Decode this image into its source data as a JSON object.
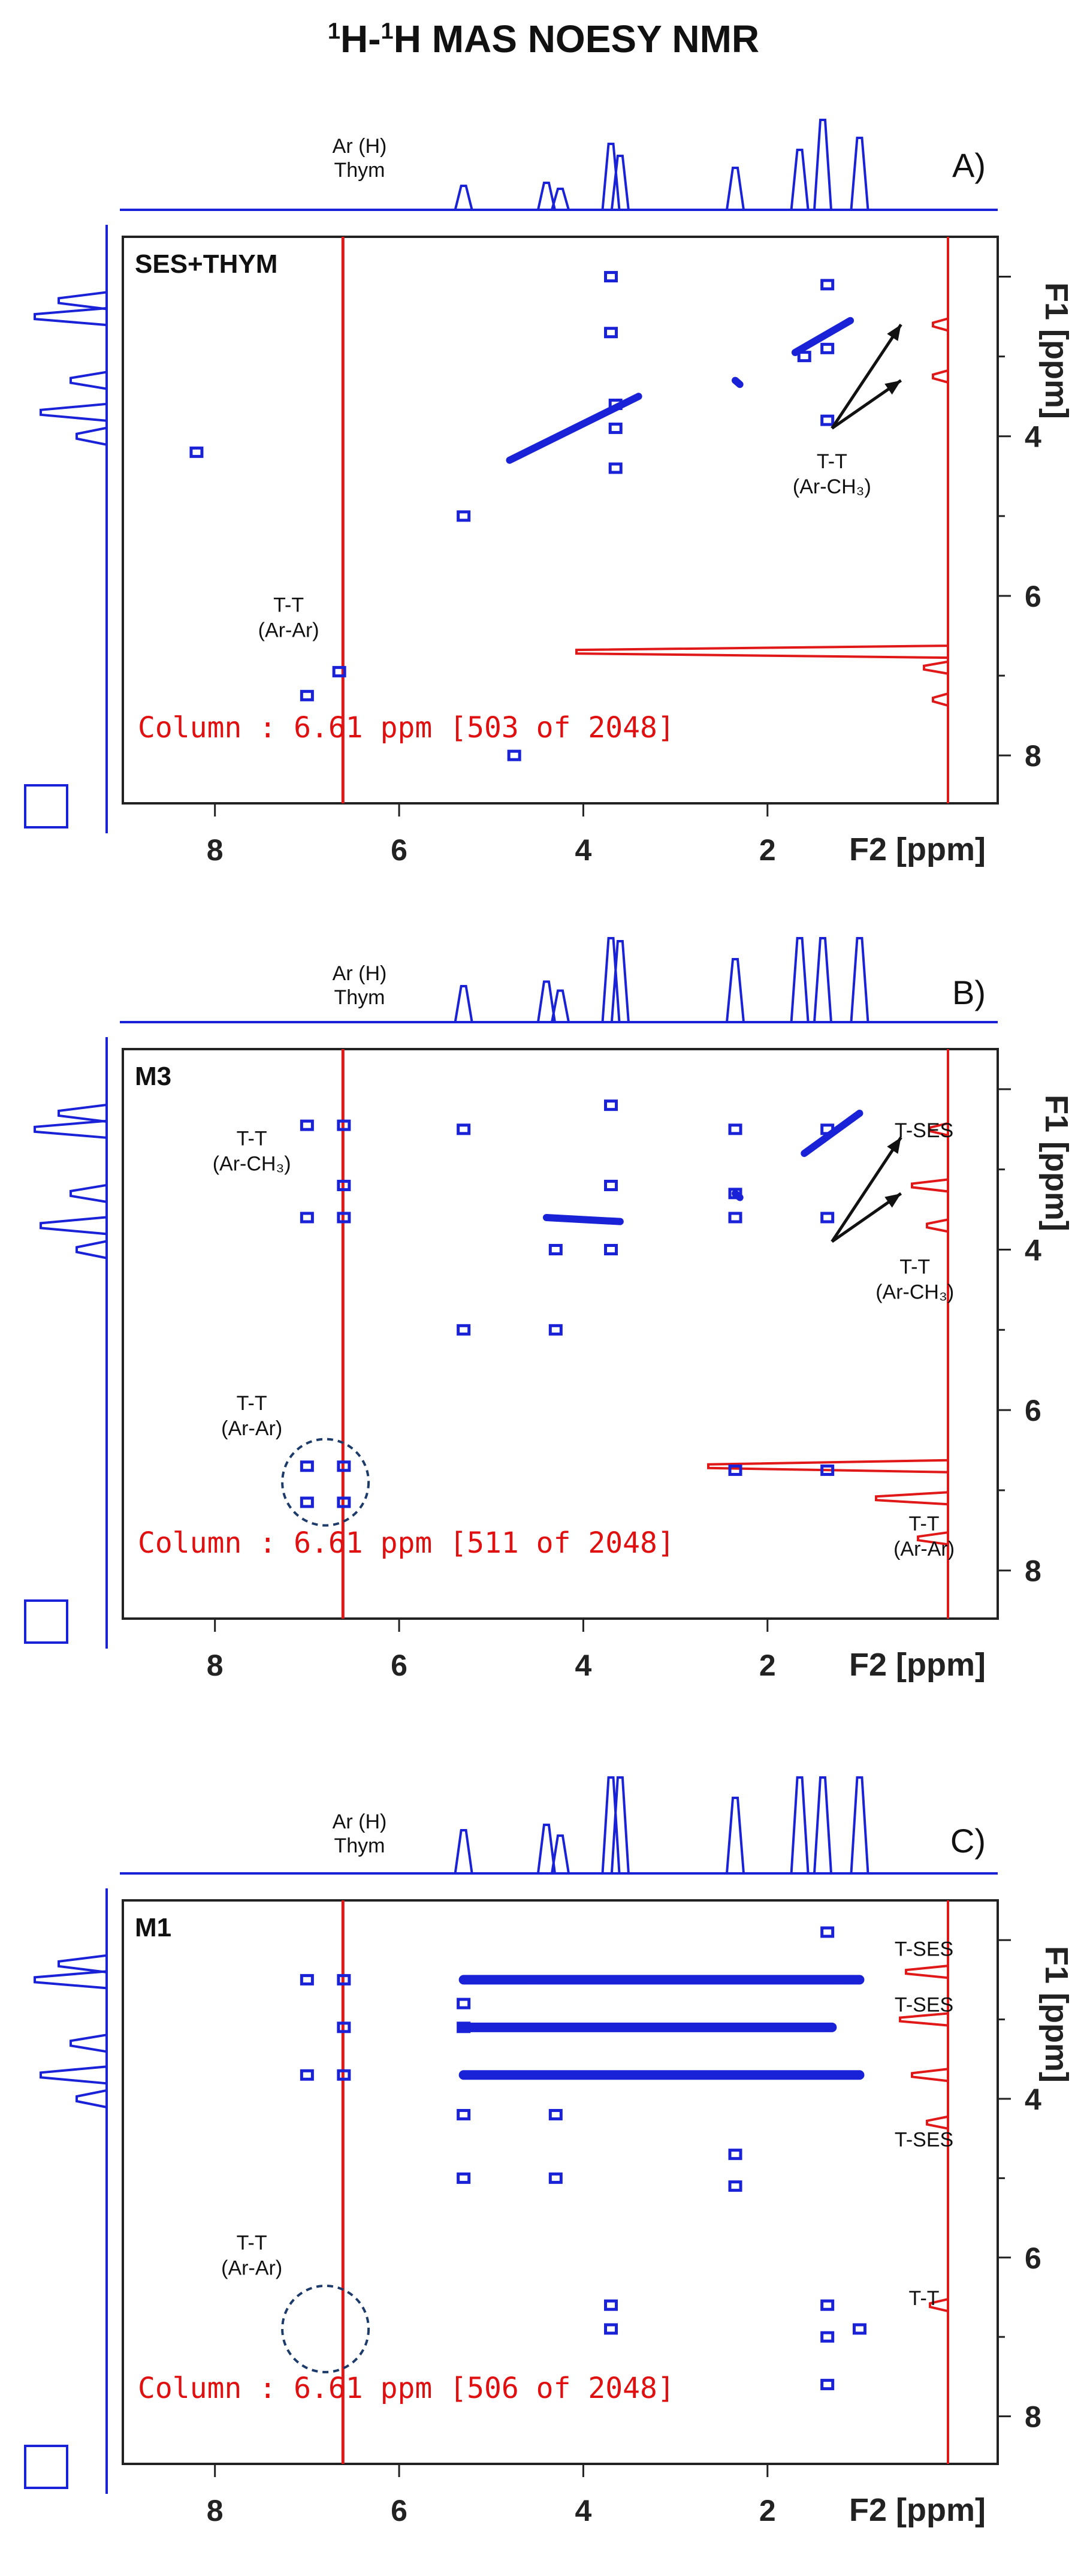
{
  "title": {
    "h1": "1",
    "dash": "H-",
    "h2": "1",
    "rest": "H MAS NOESY NMR"
  },
  "chart_data": [
    {
      "type": "scatter",
      "panel": "A)",
      "sample": "SES+THYM",
      "xlabel": "F2 [ppm]",
      "ylabel": "F1 [ppm]",
      "x_ticks": [
        "8",
        "6",
        "4",
        "2"
      ],
      "y_ticks": [
        "4",
        "6",
        "8"
      ],
      "xlim": [
        9,
        -0.5
      ],
      "ylim": [
        1.5,
        8.6
      ],
      "column_readout": "Column :  6.61 ppm [503 of 2048]",
      "column_ppm": 6.61,
      "thymol_label": {
        "line1": "Ar (H)",
        "line2": "Thym"
      },
      "annotations": [
        {
          "id": "tt-ar-ar",
          "line1": "T-T",
          "line2": "(Ar-Ar)",
          "x": 7.2,
          "y": 6.2
        },
        {
          "id": "tt-ar-ch3",
          "line1": "T-T",
          "line2": "(Ar-CH₃)",
          "x": 1.3,
          "y": 4.4
        }
      ],
      "peaks": [
        [
          3.7,
          2.0
        ],
        [
          3.7,
          2.7
        ],
        [
          1.35,
          2.1
        ],
        [
          1.35,
          3.8
        ],
        [
          3.65,
          3.6
        ],
        [
          3.65,
          3.9
        ],
        [
          3.65,
          4.4
        ],
        [
          8.2,
          4.2
        ],
        [
          5.3,
          5.0
        ],
        [
          7.0,
          7.25
        ],
        [
          6.65,
          6.95
        ],
        [
          4.75,
          8.0
        ],
        [
          1.6,
          3.0
        ],
        [
          1.35,
          2.9
        ]
      ],
      "diagonal_segments": [
        [
          4.8,
          4.3,
          3.4,
          3.5
        ],
        [
          2.35,
          3.3,
          2.3,
          3.35
        ],
        [
          1.7,
          2.95,
          1.1,
          2.55
        ]
      ],
      "side_arrows_targets": [
        2.6,
        3.3
      ]
    },
    {
      "type": "scatter",
      "panel": "B)",
      "sample": "M3",
      "xlabel": "F2 [ppm]",
      "ylabel": "F1 [ppm]",
      "x_ticks": [
        "8",
        "6",
        "4",
        "2"
      ],
      "y_ticks": [
        "4",
        "6",
        "8"
      ],
      "xlim": [
        9,
        -0.5
      ],
      "ylim": [
        1.5,
        8.6
      ],
      "column_readout": "Column :  6.61 ppm [511 of 2048]",
      "column_ppm": 6.61,
      "thymol_label": {
        "line1": "Ar (H)",
        "line2": "Thym"
      },
      "annotations": [
        {
          "id": "tt-ar-ch3-left",
          "line1": "T-T",
          "line2": "(Ar-CH₃)",
          "x": 7.6,
          "y": 2.7
        },
        {
          "id": "tt-ar-ar-left",
          "line1": "T-T",
          "line2": "(Ar-Ar)",
          "x": 7.6,
          "y": 6.0
        },
        {
          "id": "t-ses",
          "line1": "T-SES",
          "line2": "",
          "x": 0.3,
          "y": 2.6
        },
        {
          "id": "tt-ar-ch3-right",
          "line1": "T-T",
          "line2": "(Ar-CH₃)",
          "x": 0.4,
          "y": 4.3
        },
        {
          "id": "tt-ar-ar-right",
          "line1": "T-T",
          "line2": "(Ar-Ar)",
          "x": 0.3,
          "y": 7.5
        }
      ],
      "peaks": [
        [
          7.0,
          2.45
        ],
        [
          6.6,
          2.45
        ],
        [
          6.6,
          3.2
        ],
        [
          7.0,
          3.6
        ],
        [
          6.6,
          3.6
        ],
        [
          5.3,
          2.5
        ],
        [
          3.7,
          2.2
        ],
        [
          3.7,
          3.2
        ],
        [
          3.7,
          4.0
        ],
        [
          2.35,
          2.5
        ],
        [
          2.35,
          3.3
        ],
        [
          1.35,
          3.6
        ],
        [
          1.35,
          2.5
        ],
        [
          2.35,
          3.6
        ],
        [
          4.3,
          4.0
        ],
        [
          5.3,
          5.0
        ],
        [
          4.3,
          5.0
        ],
        [
          7.0,
          6.7
        ],
        [
          7.0,
          7.15
        ],
        [
          6.6,
          6.7
        ],
        [
          6.6,
          7.15
        ],
        [
          2.35,
          6.75
        ],
        [
          1.35,
          6.75
        ]
      ],
      "diagonal_segments": [
        [
          4.4,
          3.6,
          3.6,
          3.65
        ],
        [
          2.35,
          3.3,
          2.3,
          3.35
        ],
        [
          1.6,
          2.8,
          1.0,
          2.3
        ]
      ],
      "side_arrows_targets": [
        2.6,
        3.3
      ]
    },
    {
      "type": "scatter",
      "panel": "C)",
      "sample": "M1",
      "xlabel": "F2 [ppm]",
      "ylabel": "F1 [ppm]",
      "x_ticks": [
        "8",
        "6",
        "4",
        "2"
      ],
      "y_ticks": [
        "4",
        "6",
        "8"
      ],
      "xlim": [
        9,
        -0.5
      ],
      "ylim": [
        1.5,
        8.6
      ],
      "column_readout": "Column :  6.61 ppm [506 of 2048]",
      "column_ppm": 6.61,
      "thymol_label": {
        "line1": "Ar (H)",
        "line2": "Thym"
      },
      "annotations": [
        {
          "id": "t-ses-1",
          "line1": "T-SES",
          "line2": "",
          "x": 0.3,
          "y": 2.2
        },
        {
          "id": "t-ses-2",
          "line1": "T-SES",
          "line2": "",
          "x": 0.3,
          "y": 2.9
        },
        {
          "id": "t-ses-3",
          "line1": "T-SES",
          "line2": "",
          "x": 0.3,
          "y": 4.6
        },
        {
          "id": "t-t",
          "line1": "T-T",
          "line2": "",
          "x": 0.3,
          "y": 6.6
        },
        {
          "id": "tt-ar-ar-left",
          "line1": "T-T",
          "line2": "(Ar-Ar)",
          "x": 7.6,
          "y": 5.9
        }
      ],
      "peaks": [
        [
          7.0,
          2.5
        ],
        [
          6.6,
          2.5
        ],
        [
          6.6,
          3.1
        ],
        [
          7.0,
          3.7
        ],
        [
          6.6,
          3.7
        ],
        [
          5.3,
          2.8
        ],
        [
          5.3,
          3.1
        ],
        [
          5.3,
          4.2
        ],
        [
          5.3,
          5.0
        ],
        [
          4.3,
          5.0
        ],
        [
          4.3,
          4.2
        ],
        [
          3.7,
          6.6
        ],
        [
          3.7,
          6.9
        ],
        [
          2.35,
          4.7
        ],
        [
          2.35,
          5.1
        ],
        [
          1.35,
          6.6
        ],
        [
          1.35,
          7.0
        ],
        [
          1.35,
          7.6
        ],
        [
          1.0,
          6.9
        ],
        [
          1.35,
          1.9
        ]
      ],
      "diagonal_segments": [
        [
          5.3,
          2.5,
          1.0,
          2.5
        ],
        [
          5.3,
          3.1,
          1.3,
          3.1
        ],
        [
          5.3,
          3.7,
          1.0,
          3.7
        ]
      ],
      "side_arrows_targets": []
    }
  ]
}
